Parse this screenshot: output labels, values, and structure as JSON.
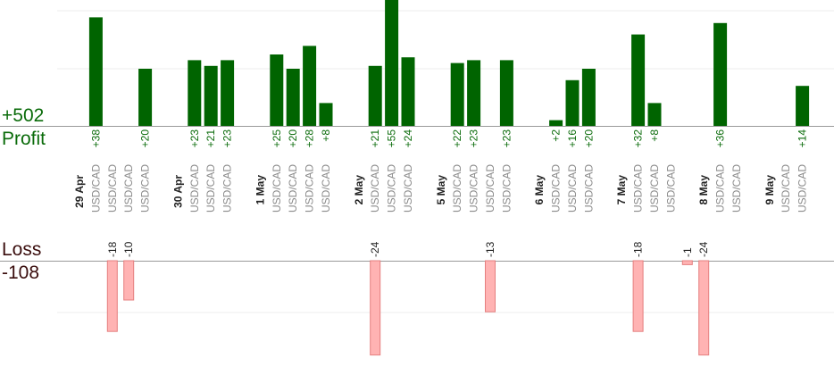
{
  "summary": {
    "profit_total": "+502",
    "profit_label": "Profit",
    "loss_label": "Loss",
    "loss_total": "-108"
  },
  "colors": {
    "profit_bar": "#006400",
    "profit_text": "#0a6b0a",
    "loss_bar": "#ffb3b3",
    "loss_border": "#e57f7f",
    "loss_text": "#222222",
    "grid": "#ececec",
    "axis": "#9a9a9a"
  },
  "chart_data": {
    "type": "bar",
    "profit_axis": {
      "ylim": [
        0,
        40
      ],
      "grid": true
    },
    "loss_axis": {
      "ylim": [
        -25,
        0
      ],
      "grid": true
    },
    "dates": [
      {
        "label": "29 Apr",
        "slot": 0
      },
      {
        "label": "30 Apr",
        "slot": 6
      },
      {
        "label": "1 May",
        "slot": 11
      },
      {
        "label": "2 May",
        "slot": 17
      },
      {
        "label": "5 May",
        "slot": 22
      },
      {
        "label": "6 May",
        "slot": 28
      },
      {
        "label": "7 May",
        "slot": 33
      },
      {
        "label": "8 May",
        "slot": 38
      },
      {
        "label": "9 May",
        "slot": 42
      }
    ],
    "categories": [
      {
        "slot": 1,
        "label": "USD/CAD"
      },
      {
        "slot": 2,
        "label": "USD/CAD"
      },
      {
        "slot": 3,
        "label": "USD/CAD"
      },
      {
        "slot": 4,
        "label": "USD/CAD"
      },
      {
        "slot": 7,
        "label": "USD/CAD"
      },
      {
        "slot": 8,
        "label": "USD/CAD"
      },
      {
        "slot": 9,
        "label": "USD/CAD"
      },
      {
        "slot": 12,
        "label": "USD/CAD"
      },
      {
        "slot": 13,
        "label": "USD/CAD"
      },
      {
        "slot": 14,
        "label": "USD/CAD"
      },
      {
        "slot": 15,
        "label": "USD/CAD"
      },
      {
        "slot": 18,
        "label": "USD/CAD"
      },
      {
        "slot": 19,
        "label": "USD/CAD"
      },
      {
        "slot": 20,
        "label": "USD/CAD"
      },
      {
        "slot": 23,
        "label": "USD/CAD"
      },
      {
        "slot": 24,
        "label": "USD/CAD"
      },
      {
        "slot": 25,
        "label": "USD/CAD"
      },
      {
        "slot": 26,
        "label": "USD/CAD"
      },
      {
        "slot": 29,
        "label": "USD/CAD"
      },
      {
        "slot": 30,
        "label": "USD/CAD"
      },
      {
        "slot": 31,
        "label": "USD/CAD"
      },
      {
        "slot": 34,
        "label": "USD/CAD"
      },
      {
        "slot": 35,
        "label": "USD/CAD"
      },
      {
        "slot": 36,
        "label": "USD/CAD"
      },
      {
        "slot": 39,
        "label": "USD/CAD"
      },
      {
        "slot": 40,
        "label": "USD/CAD"
      },
      {
        "slot": 43,
        "label": "USD/CAD"
      },
      {
        "slot": 44,
        "label": "USD/CAD"
      }
    ],
    "profit": [
      {
        "slot": 1,
        "value": 38,
        "label": "+38"
      },
      {
        "slot": 4,
        "value": 20,
        "label": "+20"
      },
      {
        "slot": 7,
        "value": 23,
        "label": "+23"
      },
      {
        "slot": 8,
        "value": 21,
        "label": "+21"
      },
      {
        "slot": 9,
        "value": 23,
        "label": "+23"
      },
      {
        "slot": 12,
        "value": 25,
        "label": "+25"
      },
      {
        "slot": 13,
        "value": 20,
        "label": "+20"
      },
      {
        "slot": 14,
        "value": 28,
        "label": "+28"
      },
      {
        "slot": 15,
        "value": 8,
        "label": "+8"
      },
      {
        "slot": 18,
        "value": 21,
        "label": "+21"
      },
      {
        "slot": 19,
        "value": 55,
        "label": "+55"
      },
      {
        "slot": 20,
        "value": 24,
        "label": "+24"
      },
      {
        "slot": 23,
        "value": 22,
        "label": "+22"
      },
      {
        "slot": 24,
        "value": 23,
        "label": "+23"
      },
      {
        "slot": 26,
        "value": 23,
        "label": "+23"
      },
      {
        "slot": 29,
        "value": 2,
        "label": "+2"
      },
      {
        "slot": 30,
        "value": 16,
        "label": "+16"
      },
      {
        "slot": 31,
        "value": 20,
        "label": "+20"
      },
      {
        "slot": 34,
        "value": 32,
        "label": "+32"
      },
      {
        "slot": 35,
        "value": 8,
        "label": "+8"
      },
      {
        "slot": 39,
        "value": 36,
        "label": "+36"
      },
      {
        "slot": 44,
        "value": 14,
        "label": "+14"
      }
    ],
    "loss": [
      {
        "slot": 2,
        "value": -18,
        "label": "-18"
      },
      {
        "slot": 3,
        "value": -10,
        "label": "-10"
      },
      {
        "slot": 18,
        "value": -24,
        "label": "-24"
      },
      {
        "slot": 25,
        "value": -13,
        "label": "-13"
      },
      {
        "slot": 34,
        "value": -18,
        "label": "-18"
      },
      {
        "slot": 37,
        "value": -1,
        "label": "-1"
      },
      {
        "slot": 38,
        "value": -24,
        "label": "-24"
      }
    ]
  }
}
